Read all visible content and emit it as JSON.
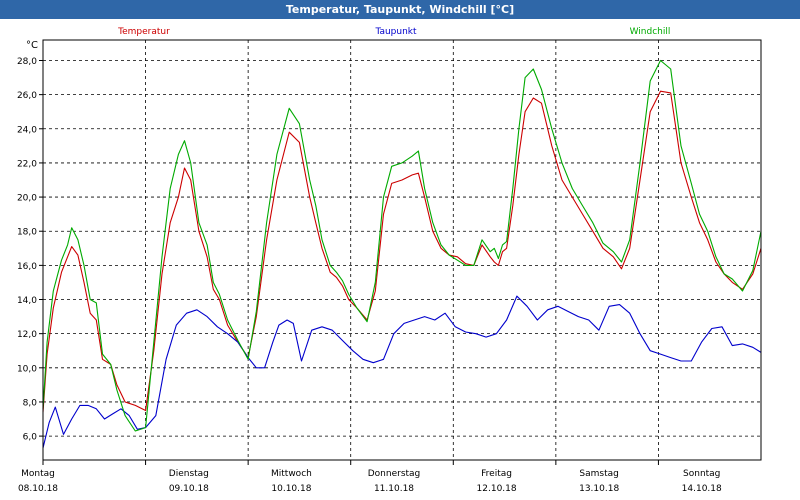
{
  "window": {
    "title": "Temperatur, Taupunkt, Windchill [°C]"
  },
  "chart_data": {
    "type": "line",
    "title": "Temperatur, Taupunkt, Windchill [°C]",
    "ylabel": "°C",
    "xlabel": "",
    "ylim": [
      4.6,
      29.2
    ],
    "xlim": [
      0,
      7
    ],
    "grid": true,
    "yticks": [
      "6,0",
      "8,0",
      "10,0",
      "12,0",
      "14,0",
      "16,0",
      "18,0",
      "20,0",
      "22,0",
      "24,0",
      "26,0",
      "28,0"
    ],
    "ytick_values": [
      6,
      8,
      10,
      12,
      14,
      16,
      18,
      20,
      22,
      24,
      26,
      28
    ],
    "day_labels": [
      {
        "day": "Montag",
        "date": "08.10.18"
      },
      {
        "day": "Dienstag",
        "date": "09.10.18"
      },
      {
        "day": "Mittwoch",
        "date": "10.10.18"
      },
      {
        "day": "Donnerstag",
        "date": "11.10.18"
      },
      {
        "day": "Freitag",
        "date": "12.10.18"
      },
      {
        "day": "Samstag",
        "date": "13.10.18"
      },
      {
        "day": "Sonntag",
        "date": "14.10.18"
      }
    ],
    "series": [
      {
        "name": "Temperatur",
        "color": "#cc0000",
        "x": [
          0.0,
          0.04,
          0.1,
          0.18,
          0.24,
          0.28,
          0.34,
          0.4,
          0.46,
          0.52,
          0.58,
          0.66,
          0.72,
          0.8,
          0.9,
          1.0,
          1.08,
          1.16,
          1.24,
          1.32,
          1.38,
          1.44,
          1.52,
          1.6,
          1.66,
          1.72,
          1.8,
          1.9,
          2.0,
          2.08,
          2.18,
          2.28,
          2.4,
          2.5,
          2.6,
          2.66,
          2.72,
          2.8,
          2.86,
          2.92,
          2.98,
          3.06,
          3.16,
          3.24,
          3.32,
          3.4,
          3.5,
          3.6,
          3.66,
          3.72,
          3.8,
          3.88,
          3.96,
          4.04,
          4.12,
          4.2,
          4.28,
          4.36,
          4.4,
          4.44,
          4.48,
          4.52,
          4.58,
          4.64,
          4.7,
          4.78,
          4.86,
          4.96,
          5.06,
          5.16,
          5.26,
          5.36,
          5.46,
          5.56,
          5.64,
          5.72,
          5.82,
          5.92,
          6.02,
          6.12,
          6.22,
          6.32,
          6.4,
          6.48,
          6.56,
          6.64,
          6.72,
          6.82,
          6.92,
          7.0
        ],
        "values": [
          7.4,
          10.8,
          13.5,
          15.6,
          16.5,
          17.1,
          16.6,
          15.0,
          13.2,
          12.8,
          10.5,
          10.2,
          9.0,
          8.0,
          7.8,
          7.5,
          11.0,
          15.5,
          18.5,
          20.0,
          21.7,
          21.0,
          18.0,
          16.5,
          14.6,
          14.0,
          12.5,
          11.5,
          10.6,
          13.0,
          17.5,
          21.0,
          23.8,
          23.2,
          20.0,
          18.5,
          17.0,
          15.6,
          15.3,
          14.8,
          14.0,
          13.5,
          12.8,
          14.5,
          19.0,
          20.8,
          21.0,
          21.3,
          21.4,
          20.0,
          18.0,
          17.0,
          16.6,
          16.5,
          16.1,
          16.0,
          17.2,
          16.5,
          16.2,
          16.0,
          16.8,
          17.0,
          19.5,
          22.5,
          25.0,
          25.8,
          25.5,
          23.0,
          21.0,
          20.0,
          19.0,
          18.0,
          17.0,
          16.5,
          15.8,
          17.0,
          21.0,
          25.0,
          26.2,
          26.1,
          22.0,
          20.0,
          18.5,
          17.5,
          16.2,
          15.5,
          15.0,
          14.6,
          15.5,
          17.0
        ]
      },
      {
        "name": "Taupunkt",
        "color": "#0000cc",
        "x": [
          0.0,
          0.06,
          0.12,
          0.2,
          0.28,
          0.36,
          0.44,
          0.52,
          0.6,
          0.68,
          0.76,
          0.84,
          0.92,
          1.0,
          1.1,
          1.2,
          1.3,
          1.4,
          1.5,
          1.6,
          1.7,
          1.8,
          1.9,
          2.0,
          2.08,
          2.16,
          2.24,
          2.3,
          2.38,
          2.44,
          2.52,
          2.62,
          2.72,
          2.82,
          2.92,
          3.02,
          3.12,
          3.22,
          3.32,
          3.42,
          3.52,
          3.62,
          3.72,
          3.82,
          3.92,
          4.02,
          4.12,
          4.22,
          4.32,
          4.42,
          4.52,
          4.62,
          4.72,
          4.82,
          4.92,
          5.02,
          5.12,
          5.22,
          5.32,
          5.42,
          5.52,
          5.62,
          5.72,
          5.82,
          5.92,
          6.02,
          6.12,
          6.22,
          6.32,
          6.42,
          6.52,
          6.62,
          6.72,
          6.82,
          6.92,
          7.0
        ],
        "values": [
          5.3,
          6.8,
          7.7,
          6.1,
          7.0,
          7.8,
          7.8,
          7.6,
          7.0,
          7.3,
          7.6,
          7.2,
          6.4,
          6.5,
          7.2,
          10.5,
          12.5,
          13.2,
          13.4,
          13.0,
          12.4,
          12.0,
          11.5,
          10.6,
          10.0,
          10.0,
          11.5,
          12.5,
          12.8,
          12.6,
          10.4,
          12.2,
          12.4,
          12.2,
          11.6,
          11.0,
          10.5,
          10.3,
          10.5,
          12.0,
          12.6,
          12.8,
          13.0,
          12.8,
          13.2,
          12.4,
          12.1,
          12.0,
          11.8,
          12.0,
          12.8,
          14.2,
          13.6,
          12.8,
          13.4,
          13.6,
          13.3,
          13.0,
          12.8,
          12.2,
          13.6,
          13.7,
          13.2,
          12.0,
          11.0,
          10.8,
          10.6,
          10.4,
          10.4,
          11.5,
          12.3,
          12.4,
          11.3,
          11.4,
          11.2,
          10.9
        ]
      },
      {
        "name": "Windchill",
        "color": "#00aa00",
        "x": [
          0.0,
          0.04,
          0.1,
          0.18,
          0.24,
          0.28,
          0.34,
          0.4,
          0.46,
          0.52,
          0.58,
          0.66,
          0.72,
          0.8,
          0.9,
          1.0,
          1.08,
          1.16,
          1.24,
          1.32,
          1.38,
          1.44,
          1.52,
          1.6,
          1.66,
          1.72,
          1.8,
          1.9,
          2.0,
          2.08,
          2.18,
          2.28,
          2.4,
          2.5,
          2.6,
          2.66,
          2.72,
          2.8,
          2.86,
          2.92,
          2.98,
          3.06,
          3.16,
          3.24,
          3.32,
          3.4,
          3.5,
          3.6,
          3.66,
          3.72,
          3.8,
          3.88,
          3.96,
          4.04,
          4.12,
          4.2,
          4.28,
          4.36,
          4.4,
          4.44,
          4.48,
          4.52,
          4.58,
          4.64,
          4.7,
          4.78,
          4.86,
          4.96,
          5.06,
          5.16,
          5.26,
          5.36,
          5.46,
          5.56,
          5.64,
          5.72,
          5.82,
          5.92,
          6.02,
          6.12,
          6.22,
          6.32,
          6.4,
          6.48,
          6.56,
          6.64,
          6.72,
          6.82,
          6.92,
          7.0
        ],
        "values": [
          7.6,
          11.5,
          14.5,
          16.3,
          17.2,
          18.2,
          17.5,
          16.0,
          14.0,
          13.8,
          10.8,
          10.2,
          8.7,
          7.2,
          6.3,
          6.5,
          11.5,
          16.5,
          20.5,
          22.5,
          23.3,
          22.0,
          18.5,
          17.2,
          15.0,
          14.3,
          12.8,
          11.6,
          10.5,
          13.3,
          18.5,
          22.5,
          25.2,
          24.3,
          21.0,
          19.5,
          17.5,
          16.0,
          15.6,
          15.1,
          14.3,
          13.5,
          12.7,
          15.0,
          20.0,
          21.8,
          22.0,
          22.4,
          22.7,
          20.5,
          18.5,
          17.2,
          16.6,
          16.3,
          16.0,
          16.0,
          17.5,
          16.8,
          17.0,
          16.4,
          17.2,
          17.4,
          20.5,
          24.0,
          27.0,
          27.5,
          26.3,
          24.0,
          22.0,
          20.5,
          19.5,
          18.5,
          17.3,
          16.8,
          16.2,
          17.5,
          22.0,
          26.8,
          28.0,
          27.5,
          23.0,
          20.8,
          19.0,
          18.0,
          16.5,
          15.5,
          15.2,
          14.5,
          15.7,
          18.0
        ]
      }
    ]
  }
}
